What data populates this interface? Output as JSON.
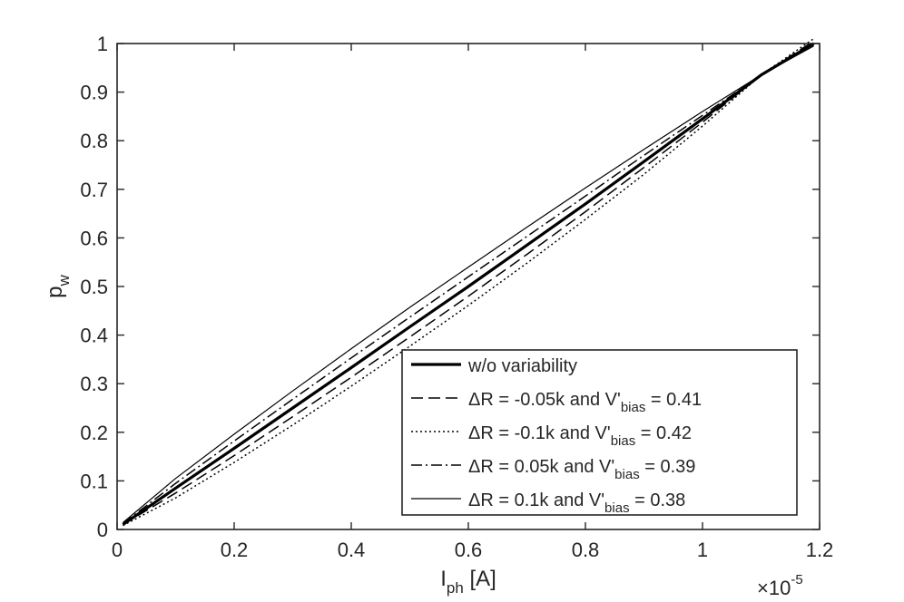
{
  "chart_data": {
    "type": "line",
    "title": "",
    "xlabel": {
      "main": "I",
      "sub": "ph",
      "unit": " [A]"
    },
    "ylabel": {
      "main": "p",
      "sub": "w"
    },
    "x_exponent": {
      "base": "×10",
      "power": "-5"
    },
    "xlim": [
      0,
      1.2
    ],
    "ylim": [
      0,
      1
    ],
    "x_ticks": [
      "0",
      "0.2",
      "0.4",
      "0.6",
      "0.8",
      "1",
      "1.2"
    ],
    "y_ticks": [
      "0",
      "0.1",
      "0.2",
      "0.3",
      "0.4",
      "0.5",
      "0.6",
      "0.7",
      "0.8",
      "0.9",
      "1"
    ],
    "grid": false,
    "legend_position": "bottom-right",
    "series": [
      {
        "legend": {
          "pre": "w/o variability",
          "sub": "",
          "post": ""
        },
        "style": "solid-thick",
        "x": [
          0.01,
          0.1,
          0.2,
          0.3,
          0.4,
          0.5,
          0.6,
          0.7,
          0.8,
          0.9,
          1.0,
          1.1,
          1.19
        ],
        "y": [
          0.01,
          0.085,
          0.167,
          0.25,
          0.333,
          0.417,
          0.5,
          0.585,
          0.67,
          0.757,
          0.845,
          0.935,
          1.0
        ]
      },
      {
        "legend": {
          "pre": "ΔR = -0.05k and V'",
          "sub": "bias",
          "post": " = 0.41"
        },
        "style": "dashed",
        "x": [
          0.01,
          0.1,
          0.2,
          0.3,
          0.4,
          0.5,
          0.6,
          0.7,
          0.8,
          0.9,
          1.0,
          1.1,
          1.19
        ],
        "y": [
          0.01,
          0.075,
          0.152,
          0.232,
          0.313,
          0.396,
          0.48,
          0.566,
          0.654,
          0.745,
          0.838,
          0.935,
          1.005
        ]
      },
      {
        "legend": {
          "pre": "ΔR = -0.1k and V'",
          "sub": "bias",
          "post": " = 0.42"
        },
        "style": "dotted",
        "x": [
          0.01,
          0.1,
          0.2,
          0.3,
          0.4,
          0.5,
          0.6,
          0.7,
          0.8,
          0.9,
          1.0,
          1.1,
          1.19
        ],
        "y": [
          0.008,
          0.065,
          0.138,
          0.215,
          0.295,
          0.377,
          0.461,
          0.548,
          0.638,
          0.731,
          0.83,
          0.935,
          1.01
        ]
      },
      {
        "legend": {
          "pre": "ΔR = 0.05k and V'",
          "sub": "bias",
          "post": " = 0.39"
        },
        "style": "dashdot",
        "x": [
          0.01,
          0.1,
          0.2,
          0.3,
          0.4,
          0.5,
          0.6,
          0.7,
          0.8,
          0.9,
          1.0,
          1.1,
          1.19
        ],
        "y": [
          0.012,
          0.095,
          0.182,
          0.268,
          0.353,
          0.437,
          0.52,
          0.603,
          0.686,
          0.77,
          0.852,
          0.935,
          0.998
        ]
      },
      {
        "legend": {
          "pre": "ΔR = 0.1k and V'",
          "sub": "bias",
          "post": " = 0.38"
        },
        "style": "solid-thin",
        "x": [
          0.01,
          0.1,
          0.2,
          0.3,
          0.4,
          0.5,
          0.6,
          0.7,
          0.8,
          0.9,
          1.0,
          1.1,
          1.19
        ],
        "y": [
          0.014,
          0.105,
          0.196,
          0.285,
          0.372,
          0.457,
          0.54,
          0.622,
          0.703,
          0.782,
          0.86,
          0.935,
          0.995
        ]
      }
    ]
  }
}
